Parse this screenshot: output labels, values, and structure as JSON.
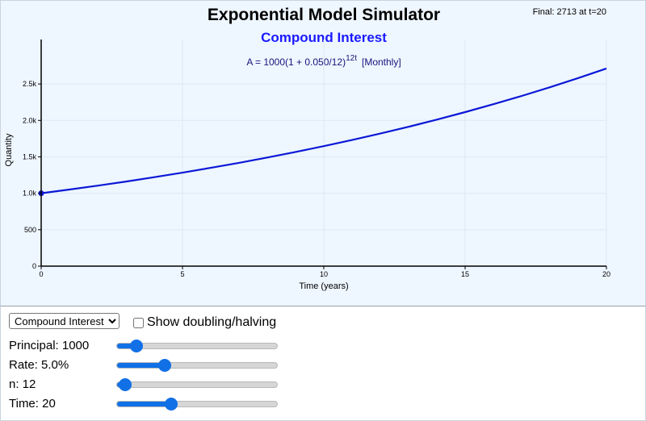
{
  "header": {
    "title": "Exponential Model Simulator",
    "subtitle": "Compound Interest",
    "final_readout": "Final: 2713 at t=20",
    "formula_prefix": "A = 1000(1 + 0.050/12)",
    "formula_exponent": "12t",
    "formula_suffix": "[Monthly]"
  },
  "colors": {
    "curve": "#0b18d6",
    "accent": "#1170e6",
    "panel_bg": "#eef6ff"
  },
  "chart_data": {
    "type": "line",
    "title": "Exponential Model Simulator",
    "subtitle": "Compound Interest",
    "xlabel": "Time (years)",
    "ylabel": "Quantity",
    "xlim": [
      0,
      20
    ],
    "ylim": [
      0,
      3000
    ],
    "x_ticks": [
      0,
      5,
      10,
      15,
      20
    ],
    "x_tick_labels": [
      "0",
      "5",
      "10",
      "15",
      "20"
    ],
    "y_ticks": [
      0,
      500,
      1000,
      1500,
      2000,
      2500
    ],
    "y_tick_labels": [
      "0",
      "500",
      "1.0k",
      "1.5k",
      "2.0k",
      "2.5k"
    ],
    "grid": true,
    "series": [
      {
        "x": [
          0,
          1,
          2,
          3,
          4,
          5,
          6,
          7,
          8,
          9,
          10,
          11,
          12,
          13,
          14,
          15,
          16,
          17,
          18,
          19,
          20
        ],
        "values": [
          1000,
          1051,
          1105,
          1161,
          1221,
          1283,
          1349,
          1418,
          1491,
          1567,
          1647,
          1731,
          1819,
          1913,
          2011,
          2114,
          2222,
          2335,
          2455,
          2581,
          2713
        ]
      }
    ],
    "start_point": {
      "x": 0,
      "y": 1000
    }
  },
  "controls": {
    "model_select": {
      "selected": "Compound Interest",
      "options": [
        "Compound Interest"
      ]
    },
    "show_doubling_label": "Show doubling/halving",
    "show_doubling_checked": false,
    "sliders": [
      {
        "key": "principal",
        "label": "Principal: 1000",
        "level_percent": 12
      },
      {
        "key": "rate",
        "label": "Rate: 5.0%",
        "level_percent": 30
      },
      {
        "key": "n",
        "label": "n: 12",
        "level_percent": 5
      },
      {
        "key": "time",
        "label": "Time: 20",
        "level_percent": 34
      }
    ]
  }
}
